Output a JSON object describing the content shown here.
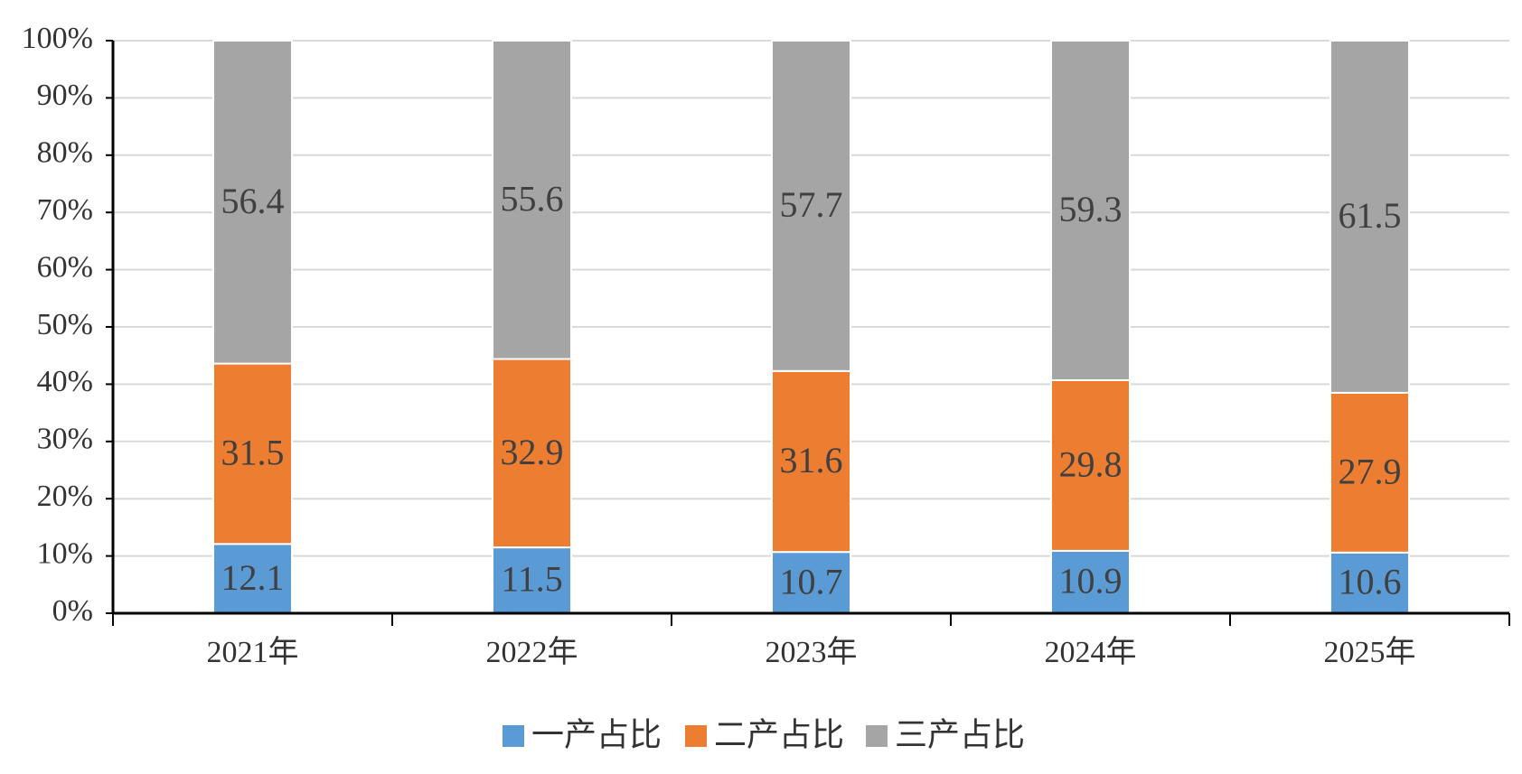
{
  "chart_data": {
    "type": "stacked_bar",
    "categories": [
      "2021年",
      "2022年",
      "2023年",
      "2024年",
      "2025年"
    ],
    "series": [
      {
        "name": "一产占比",
        "color": "#5b9bd5",
        "values": [
          12.1,
          11.5,
          10.7,
          10.9,
          10.6
        ]
      },
      {
        "name": "二产占比",
        "color": "#ed7d31",
        "values": [
          31.5,
          32.9,
          31.6,
          29.8,
          27.9
        ]
      },
      {
        "name": "三产占比",
        "color": "#a5a5a5",
        "values": [
          56.4,
          55.6,
          57.7,
          59.3,
          61.5
        ]
      }
    ],
    "ylim": [
      0,
      100
    ],
    "yticks": [
      {
        "value": 0,
        "label": "0%"
      },
      {
        "value": 10,
        "label": "10%"
      },
      {
        "value": 20,
        "label": "20%"
      },
      {
        "value": 30,
        "label": "30%"
      },
      {
        "value": 40,
        "label": "40%"
      },
      {
        "value": 50,
        "label": "50%"
      },
      {
        "value": 60,
        "label": "60%"
      },
      {
        "value": 70,
        "label": "70%"
      },
      {
        "value": 80,
        "label": "80%"
      },
      {
        "value": 90,
        "label": "90%"
      },
      {
        "value": 100,
        "label": "100%"
      }
    ],
    "grid": true,
    "legend": "bottom"
  }
}
